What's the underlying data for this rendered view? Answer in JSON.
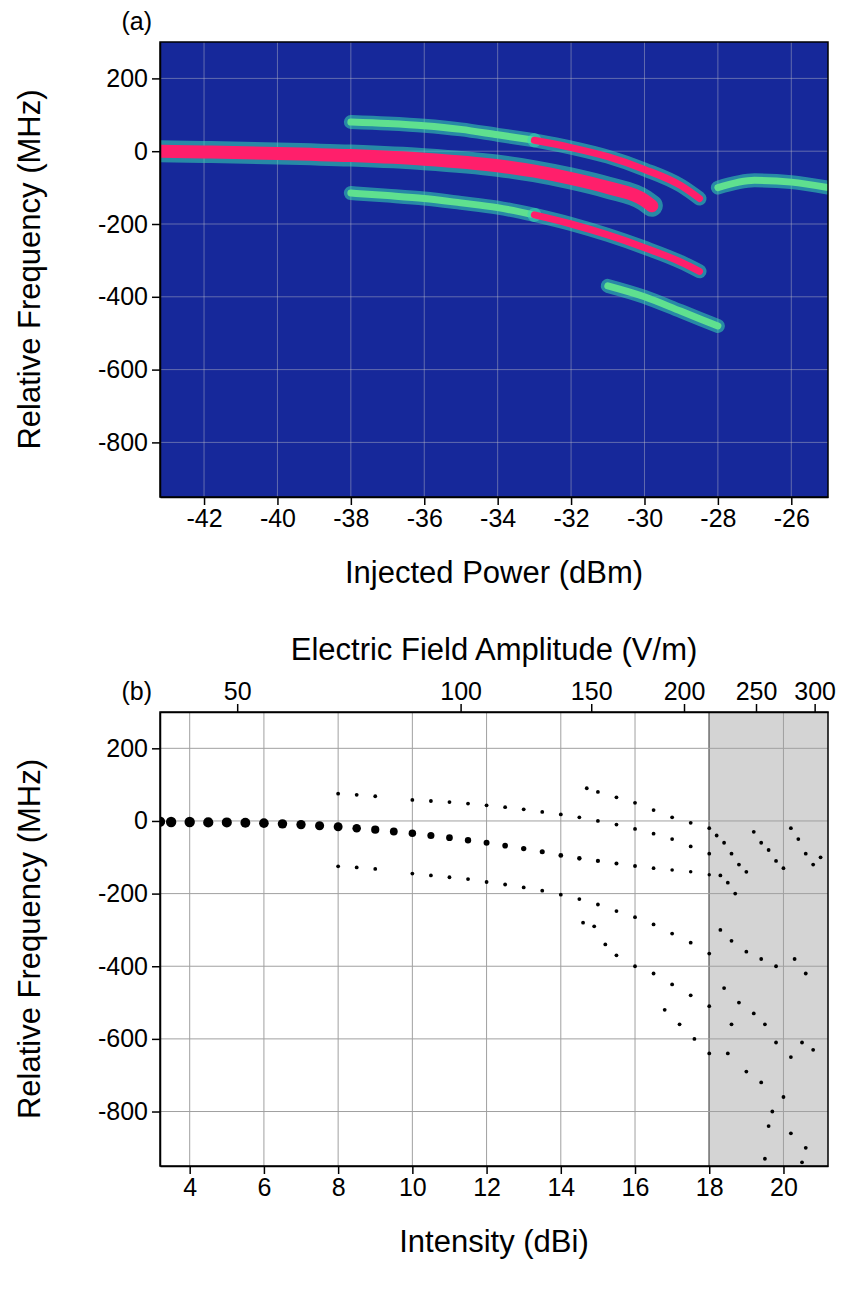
{
  "chart_data": [
    {
      "type": "line",
      "panel_label": "(a)",
      "x_label": "Injected Power (dBm)",
      "y_label": "Relative Frequency (MHz)",
      "xlim": [
        -43.2,
        -25
      ],
      "xticks": [
        -42,
        -40,
        -38,
        -36,
        -34,
        -32,
        -30,
        -28,
        -26
      ],
      "ylim": [
        -950,
        300
      ],
      "yticks": [
        -800,
        -600,
        -400,
        -200,
        0,
        200
      ],
      "grid": true,
      "series": [
        {
          "color": "#ff1f6b",
          "x": [
            -43.2,
            -42,
            -40,
            -38,
            -36,
            -34,
            -33,
            -32,
            -31,
            -30,
            -29.8
          ],
          "values": [
            0,
            -2,
            -6,
            -12,
            -22,
            -40,
            -55,
            -75,
            -100,
            -135,
            -150
          ]
        },
        {
          "color": "#5fe08f",
          "x": [
            -38,
            -37,
            -36,
            -35,
            -34,
            -33
          ],
          "values": [
            80,
            76,
            70,
            60,
            45,
            30
          ]
        },
        {
          "color": "#ff1f6b",
          "x": [
            -33,
            -32,
            -31,
            -30,
            -29,
            -28.5
          ],
          "values": [
            30,
            10,
            -15,
            -50,
            -95,
            -130
          ]
        },
        {
          "color": "#5fe08f",
          "x": [
            -38,
            -37,
            -36,
            -35,
            -34,
            -33
          ],
          "values": [
            -115,
            -122,
            -130,
            -142,
            -155,
            -175
          ]
        },
        {
          "color": "#ff1f6b",
          "x": [
            -33,
            -32,
            -31,
            -30,
            -29,
            -28.5
          ],
          "values": [
            -175,
            -200,
            -230,
            -265,
            -305,
            -330
          ]
        },
        {
          "color": "#5fe08f",
          "x": [
            -31,
            -30,
            -29,
            -28
          ],
          "values": [
            -370,
            -400,
            -440,
            -480
          ]
        },
        {
          "color": "#5fe08f",
          "x": [
            -28,
            -27,
            -26,
            -25
          ],
          "values": [
            -100,
            -80,
            -85,
            -100
          ]
        }
      ]
    },
    {
      "type": "scatter",
      "panel_label": "(b)",
      "x_label": "Intensity (dBi)",
      "x2_label": "Electric Field Amplitude (V/m)",
      "y_label": "Relative Frequency (MHz)",
      "xlim": [
        3.2,
        21.2
      ],
      "xticks": [
        4,
        6,
        8,
        10,
        12,
        14,
        16,
        18,
        20
      ],
      "x2lim": [
        3.2,
        21.2
      ],
      "x2ticks": [
        {
          "value": 5.28,
          "label": "50"
        },
        {
          "value": 11.3,
          "label": "100"
        },
        {
          "value": 14.82,
          "label": "150"
        },
        {
          "value": 17.32,
          "label": "200"
        },
        {
          "value": 19.26,
          "label": "250"
        },
        {
          "value": 20.84,
          "label": "300"
        }
      ],
      "ylim": [
        -950,
        300
      ],
      "yticks": [
        -800,
        -600,
        -400,
        -200,
        0,
        200
      ],
      "grid": true,
      "color": "#000000",
      "marker": "circle",
      "shaded_region": [
        18,
        21.2
      ],
      "series": [
        {
          "x": [
            3.2,
            3.5,
            4,
            4.5,
            5,
            5.5,
            6,
            6.5,
            7,
            7.5,
            8,
            8.5,
            9,
            9.5,
            10,
            10.5,
            11,
            11.5,
            12,
            12.5,
            13,
            13.5,
            14,
            14.5,
            15,
            15.5,
            16,
            16.5,
            17,
            17.5,
            18
          ],
          "values": [
            -2,
            -3,
            -3,
            -4,
            -4,
            -5,
            -6,
            -8,
            -10,
            -13,
            -16,
            -20,
            -24,
            -29,
            -34,
            -40,
            -46,
            -53,
            -60,
            -68,
            -76,
            -85,
            -95,
            -103,
            -110,
            -117,
            -124,
            -130,
            -135,
            -140,
            -148
          ],
          "sizes": [
            1,
            1,
            1,
            0.98,
            0.96,
            0.94,
            0.92,
            0.9,
            0.88,
            0.86,
            0.84,
            0.8,
            0.76,
            0.72,
            0.68,
            0.64,
            0.6,
            0.56,
            0.52,
            0.48,
            0.45,
            0.42,
            0.39,
            0.36,
            0.33,
            0.31,
            0.29,
            0.27,
            0.26,
            0.25,
            0.24
          ]
        },
        {
          "x": [
            8,
            8.5,
            9,
            10,
            10.5,
            11,
            11.5,
            12,
            12.5,
            13,
            13.5,
            14,
            14.5,
            15,
            15.5,
            16,
            16.5,
            17,
            17.5,
            18
          ],
          "values": [
            75,
            72,
            68,
            58,
            55,
            52,
            48,
            43,
            38,
            32,
            25,
            18,
            10,
            0,
            -10,
            -22,
            -35,
            -50,
            -70,
            -90
          ]
        },
        {
          "x": [
            14.7,
            15,
            15.5,
            16,
            16.5,
            17,
            17.5,
            18
          ],
          "values": [
            90,
            80,
            65,
            50,
            30,
            10,
            -5,
            -20
          ]
        },
        {
          "x": [
            8,
            8.5,
            9,
            10,
            10.5,
            11,
            11.5,
            12,
            12.5,
            13,
            13.5,
            14,
            14.5,
            15,
            15.5,
            16,
            16.5,
            17,
            17.5,
            18
          ],
          "values": [
            -125,
            -128,
            -132,
            -145,
            -150,
            -155,
            -160,
            -168,
            -175,
            -183,
            -192,
            -203,
            -215,
            -230,
            -248,
            -265,
            -285,
            -310,
            -335,
            -365
          ]
        },
        {
          "x": [
            14.6,
            14.9,
            15.2,
            15.5,
            16,
            16.5,
            17,
            17.5,
            18
          ],
          "values": [
            -280,
            -290,
            -340,
            -370,
            -400,
            -420,
            -450,
            -480,
            -510
          ]
        },
        {
          "x": [
            16.8,
            17.2,
            17.6,
            18
          ],
          "values": [
            -520,
            -560,
            -600,
            -640
          ]
        },
        {
          "x": [
            18.2,
            18.4,
            18.6,
            18.8,
            19,
            18.3,
            18.5,
            18.7,
            19.2,
            19.4,
            19.6,
            19.8,
            20,
            20.2,
            20.4,
            20.6,
            20.8,
            21,
            18.3,
            18.6,
            19,
            19.4,
            19.8,
            20.3,
            20.6,
            18.4,
            18.8,
            19.2,
            19.5,
            19.8,
            20.2,
            20.5,
            18.5,
            19,
            19.4,
            19.7,
            19.6,
            20,
            20.2,
            20.6,
            19.5,
            20.5,
            18.6,
            20.8
          ],
          "values": [
            -40,
            -60,
            -90,
            -120,
            -140,
            -150,
            -170,
            -200,
            -30,
            -60,
            -80,
            -110,
            -130,
            -20,
            -50,
            -90,
            -120,
            -100,
            -300,
            -330,
            -360,
            -380,
            -400,
            -380,
            -420,
            -460,
            -500,
            -530,
            -560,
            -610,
            -650,
            -610,
            -640,
            -690,
            -720,
            -800,
            -840,
            -760,
            -860,
            -900,
            -930,
            -940,
            -560,
            -630
          ]
        }
      ]
    }
  ]
}
